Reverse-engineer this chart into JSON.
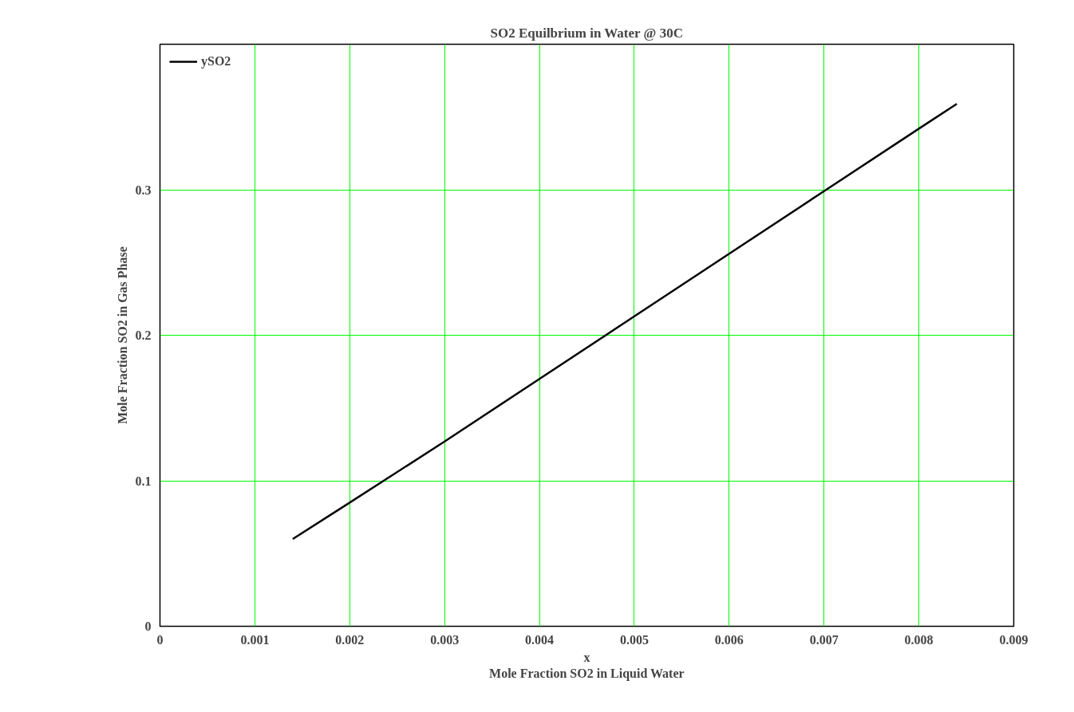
{
  "chart_data": {
    "type": "line",
    "title": "SO2 Equilbrium in Water @ 30C",
    "xlabel": "x\nMole Fraction SO2 in Liquid Water",
    "ylabel": "Mole Fraction SO2 in Gas Phase",
    "series": [
      {
        "name": "ySO2",
        "color": "#000000",
        "x": [
          0.0014,
          0.002,
          0.003,
          0.004,
          0.005,
          0.006,
          0.007,
          0.008,
          0.0084
        ],
        "values": [
          0.06,
          0.085,
          0.127,
          0.17,
          0.213,
          0.256,
          0.299,
          0.342,
          0.359
        ]
      }
    ],
    "xlim": [
      0,
      0.009
    ],
    "xticks": [
      0,
      0.001,
      0.002,
      0.003,
      0.004,
      0.005,
      0.006,
      0.007,
      0.008,
      0.009
    ],
    "ylim": [
      0,
      0.4
    ],
    "yticks": [
      0,
      0.1,
      0.2,
      0.3
    ],
    "grid": true,
    "legend": "top left",
    "line_style": "solid",
    "marker": "none"
  }
}
